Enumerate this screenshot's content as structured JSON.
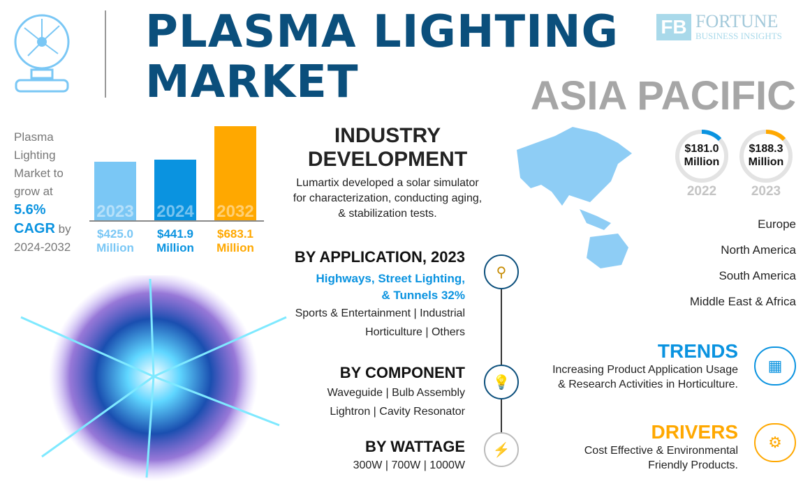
{
  "header": {
    "title_line1": "PLASMA LIGHTING",
    "title_line2": "MARKET",
    "region": "ASIA PACIFIC"
  },
  "logo": {
    "name": "FORTUNE",
    "sub": "BUSINESS INSIGHTS"
  },
  "growth": {
    "line1": "Plasma",
    "line2": "Lighting",
    "line3": "Market to",
    "line4": "grow at",
    "cagr_value": "5.6%",
    "cagr_label": "CAGR",
    "by": "by",
    "period": "2024-2032"
  },
  "chart_data": {
    "type": "bar",
    "categories": [
      "2023",
      "2024",
      "2032"
    ],
    "values": [
      425.0,
      441.9,
      683.1
    ],
    "value_labels": [
      "$425.0",
      "$441.9",
      "$683.1"
    ],
    "unit": "Million",
    "colors": [
      "#7ac7f5",
      "#0a93e0",
      "#ffa800"
    ]
  },
  "industry": {
    "title1": "INDUSTRY",
    "title2": "DEVELOPMENT",
    "desc1": "Lumartix developed a solar simulator",
    "desc2": "for characterization, conducting aging,",
    "desc3": "& stabilization tests."
  },
  "application": {
    "title": "BY APPLICATION, 2023",
    "highlight1": "Highways, Street Lighting,",
    "highlight2": "& Tunnels 32%",
    "line1": "Sports & Entertainment  |  Industrial",
    "line2": "Horticulture  |  Others",
    "icon": "street-lamp-icon"
  },
  "component": {
    "title": "BY COMPONENT",
    "line1": "Waveguide  |   Bulb Assembly",
    "line2": "Lightron  |  Cavity Resonator",
    "icon": "bulb-icon"
  },
  "wattage": {
    "title": "BY WATTAGE",
    "line1": "300W  |  700W  |  1000W",
    "icon": "lightning-icon"
  },
  "asia": {
    "stats": [
      {
        "value": "$181.0",
        "unit": "Million",
        "year": "2022",
        "color": "#0a93e0"
      },
      {
        "value": "$188.3",
        "unit": "Million",
        "year": "2023",
        "color": "#ffa800"
      }
    ]
  },
  "regions": [
    "Europe",
    "North America",
    "South America",
    "Middle East & Africa"
  ],
  "trends": {
    "title": "TRENDS",
    "line1": "Increasing Product Application Usage",
    "line2": "& Research Activities in Horticulture.",
    "color": "#0a93e0"
  },
  "drivers": {
    "title": "DRIVERS",
    "line1": "Cost Effective & Environmental",
    "line2": "Friendly Products.",
    "color": "#ffa800"
  }
}
